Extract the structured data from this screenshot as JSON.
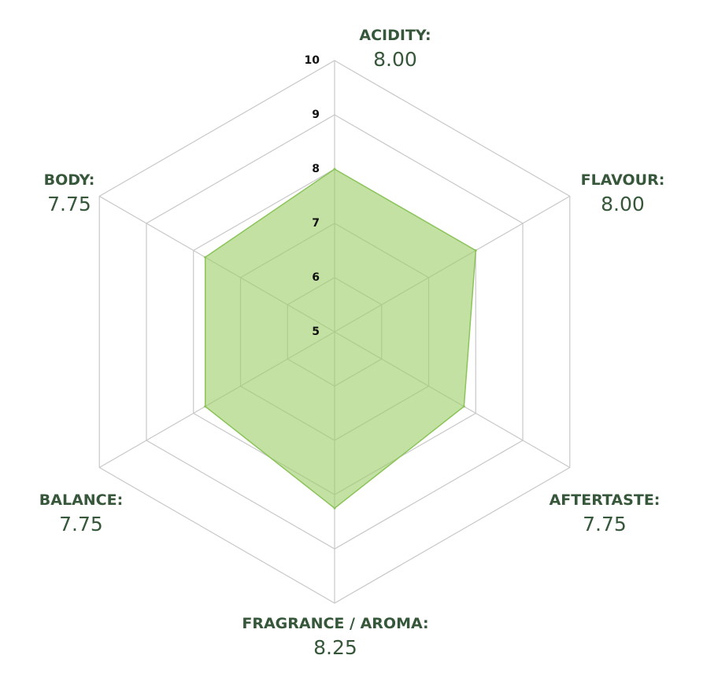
{
  "chart_data": {
    "type": "radar",
    "rlim": [
      5,
      10
    ],
    "ticks": [
      "5",
      "6",
      "7",
      "8",
      "9",
      "10"
    ],
    "grid": true,
    "axes": [
      {
        "name": "ACIDITY:",
        "value": 8.0,
        "display": "8.00"
      },
      {
        "name": "FLAVOUR:",
        "value": 8.0,
        "display": "8.00"
      },
      {
        "name": "AFTERTASTE:",
        "value": 7.75,
        "display": "7.75"
      },
      {
        "name": "FRAGRANCE / AROMA:",
        "value": 8.25,
        "display": "8.25"
      },
      {
        "name": "BALANCE:",
        "value": 7.75,
        "display": "7.75"
      },
      {
        "name": "BODY:",
        "value": 7.75,
        "display": "7.75"
      }
    ]
  },
  "colors": {
    "label": "#36573a",
    "fill": "#9ccf6a",
    "stroke": "#8cc45a",
    "grid": "#c8c8c8",
    "tick": "#111111"
  }
}
